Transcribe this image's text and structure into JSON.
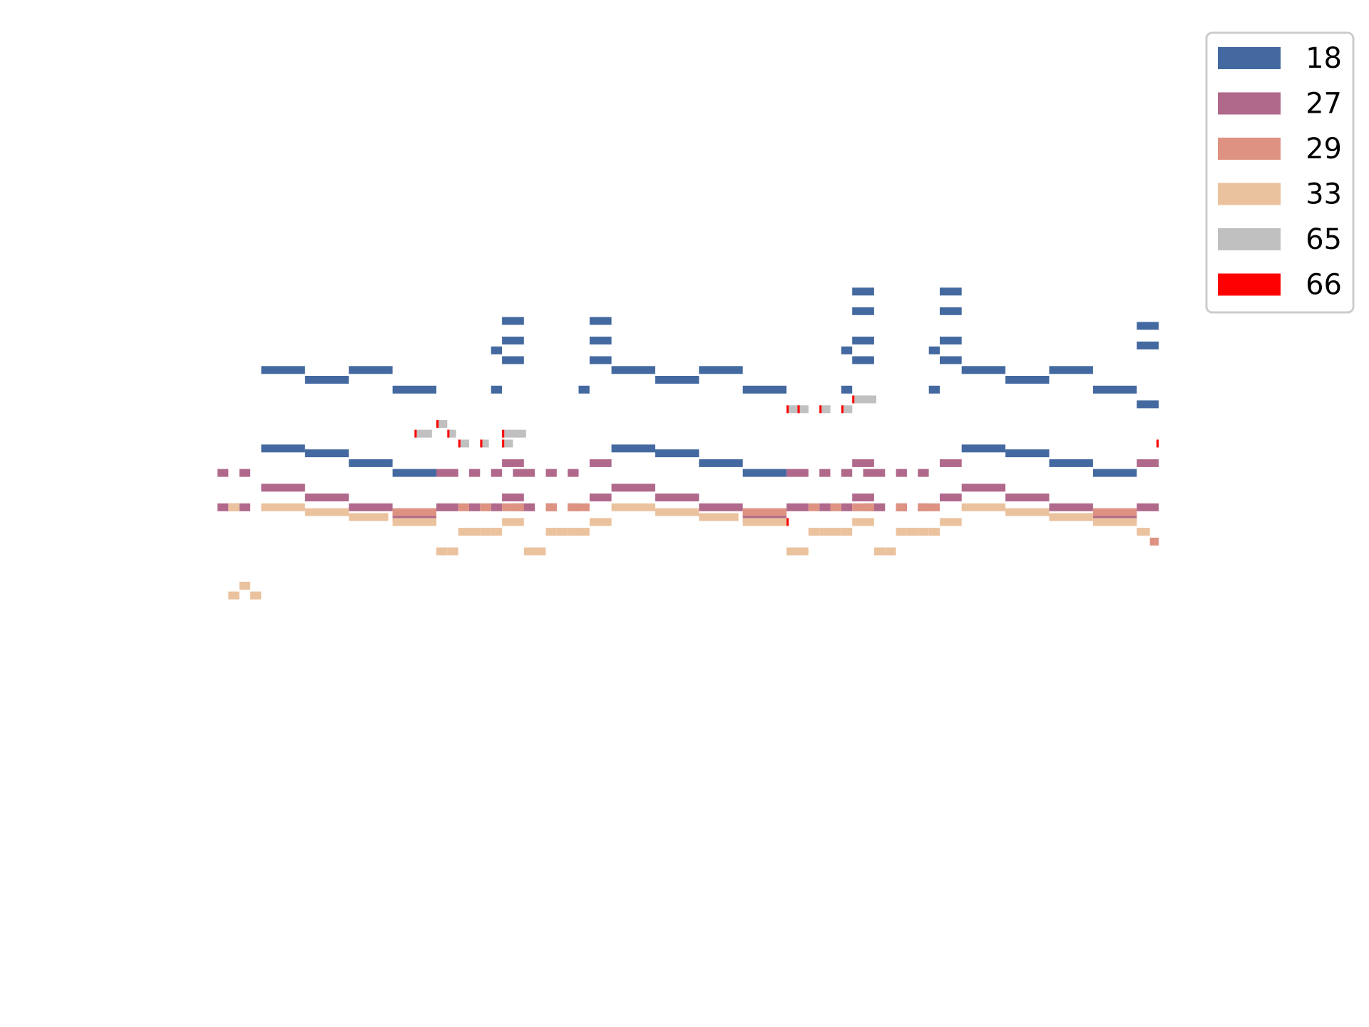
{
  "chart_data": {
    "type": "piano-roll",
    "title": "",
    "xlabel": "",
    "ylabel": "",
    "axes_visible": false,
    "grid": false,
    "xlim": [
      0,
      43
    ],
    "ylim": [
      20,
      100
    ],
    "legend": {
      "placement": "top-right"
    },
    "series": [
      {
        "name": "18",
        "color": "#4469a0",
        "notes": [
          [
            2,
            4,
            75
          ],
          [
            4,
            6,
            74
          ],
          [
            6,
            8,
            75
          ],
          [
            8,
            10,
            73
          ],
          [
            12.5,
            13,
            77
          ],
          [
            13,
            14,
            78
          ],
          [
            13,
            14,
            80
          ],
          [
            13,
            14,
            76
          ],
          [
            12.5,
            13,
            73
          ],
          [
            17,
            18,
            78
          ],
          [
            17,
            18,
            80
          ],
          [
            17,
            18,
            76
          ],
          [
            16.5,
            17,
            73
          ],
          [
            18,
            20,
            75
          ],
          [
            20,
            22,
            74
          ],
          [
            22,
            24,
            75
          ],
          [
            24,
            26,
            73
          ],
          [
            28.5,
            29,
            77
          ],
          [
            29,
            30,
            78
          ],
          [
            29,
            30,
            81
          ],
          [
            29,
            30,
            83
          ],
          [
            29,
            30,
            76
          ],
          [
            28.5,
            29,
            73
          ],
          [
            32.5,
            33,
            77
          ],
          [
            33,
            34,
            78
          ],
          [
            33,
            34,
            81
          ],
          [
            33,
            34,
            83
          ],
          [
            33,
            34,
            76
          ],
          [
            32.5,
            33,
            73
          ],
          [
            34,
            36,
            75
          ],
          [
            36,
            38,
            74
          ],
          [
            38,
            40,
            75
          ],
          [
            40,
            42,
            73
          ],
          [
            42,
            43,
            79.5
          ],
          [
            42,
            43,
            77.5
          ],
          [
            42,
            43,
            71.5
          ],
          [
            2,
            4,
            67
          ],
          [
            4,
            6,
            66.5
          ],
          [
            6,
            8,
            65.5
          ],
          [
            8,
            10,
            64.5
          ],
          [
            18,
            20,
            67
          ],
          [
            20,
            22,
            66.5
          ],
          [
            22,
            24,
            65.5
          ],
          [
            24,
            26,
            64.5
          ],
          [
            34,
            36,
            67
          ],
          [
            36,
            38,
            66.5
          ],
          [
            38,
            40,
            65.5
          ],
          [
            40,
            42,
            64.5
          ]
        ]
      },
      {
        "name": "27",
        "color": "#b0688b",
        "notes": [
          [
            0,
            0.5,
            64.5
          ],
          [
            1,
            1.5,
            64.5
          ],
          [
            0,
            0.5,
            61
          ],
          [
            1,
            1.5,
            61
          ],
          [
            2,
            4,
            63
          ],
          [
            4,
            6,
            62
          ],
          [
            6,
            8,
            61
          ],
          [
            8,
            10,
            60
          ],
          [
            10,
            11,
            64.5
          ],
          [
            11.5,
            12,
            64.5
          ],
          [
            12.5,
            13,
            64.5
          ],
          [
            13.5,
            14.5,
            64.5
          ],
          [
            15,
            15.5,
            64.5
          ],
          [
            16,
            16.5,
            64.5
          ],
          [
            13,
            14,
            65.5
          ],
          [
            13,
            14,
            62
          ],
          [
            17,
            18,
            65.5
          ],
          [
            17,
            18,
            62
          ],
          [
            10,
            11,
            61
          ],
          [
            11.5,
            12,
            61
          ],
          [
            12.5,
            13,
            61
          ],
          [
            13.5,
            14.5,
            61
          ],
          [
            15,
            15.5,
            61
          ],
          [
            16,
            16.5,
            61
          ],
          [
            18,
            20,
            63
          ],
          [
            20,
            22,
            62
          ],
          [
            22,
            24,
            61
          ],
          [
            24,
            26,
            60
          ],
          [
            26,
            27,
            64.5
          ],
          [
            27.5,
            28,
            64.5
          ],
          [
            28.5,
            29,
            64.5
          ],
          [
            29.5,
            30.5,
            64.5
          ],
          [
            31,
            31.5,
            64.5
          ],
          [
            32,
            32.5,
            64.5
          ],
          [
            29,
            30,
            65.5
          ],
          [
            29,
            30,
            62
          ],
          [
            33,
            34,
            65.5
          ],
          [
            33,
            34,
            62
          ],
          [
            26,
            27,
            61
          ],
          [
            27.5,
            28,
            61
          ],
          [
            28.5,
            29,
            61
          ],
          [
            29.5,
            30.5,
            61
          ],
          [
            31,
            31.5,
            61
          ],
          [
            32,
            32.5,
            61
          ],
          [
            34,
            36,
            63
          ],
          [
            36,
            38,
            62
          ],
          [
            38,
            40,
            61
          ],
          [
            40,
            42,
            60
          ],
          [
            42,
            43,
            65.5
          ],
          [
            42,
            43,
            61
          ]
        ]
      },
      {
        "name": "29",
        "color": "#de9282",
        "notes": [
          [
            0.5,
            1,
            61
          ],
          [
            8,
            10,
            60.5
          ],
          [
            11,
            11.5,
            61
          ],
          [
            12,
            12.5,
            61
          ],
          [
            13,
            14,
            61
          ],
          [
            15,
            15.5,
            61
          ],
          [
            16,
            17,
            61
          ],
          [
            24,
            26,
            60.5
          ],
          [
            27,
            27.5,
            61
          ],
          [
            28,
            28.5,
            61
          ],
          [
            29,
            30,
            61
          ],
          [
            31,
            31.5,
            61
          ],
          [
            32,
            33,
            61
          ],
          [
            40,
            42,
            60.5
          ],
          [
            42.6,
            43,
            57.5
          ]
        ]
      },
      {
        "name": "33",
        "color": "#ebc29e",
        "notes": [
          [
            0.5,
            1,
            61
          ],
          [
            2,
            4,
            61
          ],
          [
            4,
            6,
            60.5
          ],
          [
            6,
            7.8,
            60
          ],
          [
            8,
            10,
            59.5
          ],
          [
            13,
            14,
            59.5
          ],
          [
            17,
            18,
            59.5
          ],
          [
            11,
            11.5,
            58.5
          ],
          [
            11.5,
            12,
            58.5
          ],
          [
            12,
            12.5,
            58.5
          ],
          [
            12.5,
            13,
            58.5
          ],
          [
            10,
            10.5,
            56.5
          ],
          [
            10.5,
            11,
            56.5
          ],
          [
            15,
            15.5,
            58.5
          ],
          [
            15.5,
            16,
            58.5
          ],
          [
            16,
            16.5,
            58.5
          ],
          [
            16.5,
            17,
            58.5
          ],
          [
            14,
            14.5,
            56.5
          ],
          [
            14.5,
            15,
            56.5
          ],
          [
            18,
            20,
            61
          ],
          [
            20,
            22,
            60.5
          ],
          [
            22,
            23.8,
            60
          ],
          [
            24,
            26,
            59.5
          ],
          [
            29,
            30,
            59.5
          ],
          [
            33,
            34,
            59.5
          ],
          [
            27,
            27.5,
            58.5
          ],
          [
            27.5,
            28,
            58.5
          ],
          [
            28,
            28.5,
            58.5
          ],
          [
            28.5,
            29,
            58.5
          ],
          [
            26,
            26.5,
            56.5
          ],
          [
            26.5,
            27,
            56.5
          ],
          [
            31,
            31.5,
            58.5
          ],
          [
            31.5,
            32,
            58.5
          ],
          [
            32,
            32.5,
            58.5
          ],
          [
            32.5,
            33,
            58.5
          ],
          [
            30,
            30.5,
            56.5
          ],
          [
            30.5,
            31,
            56.5
          ],
          [
            34,
            36,
            61
          ],
          [
            36,
            38,
            60.5
          ],
          [
            38,
            40,
            60
          ],
          [
            40,
            42,
            59.5
          ],
          [
            42,
            42.6,
            58.5
          ],
          [
            1,
            1.5,
            53
          ],
          [
            0.5,
            1,
            52
          ],
          [
            1.5,
            2,
            52
          ]
        ]
      },
      {
        "name": "65",
        "color": "#c0c0c0",
        "notes": [
          [
            10.1,
            10.5,
            69.5
          ],
          [
            9.1,
            9.8,
            68.5
          ],
          [
            10.6,
            10.9,
            68.5
          ],
          [
            13.1,
            14.1,
            68.5
          ],
          [
            11.1,
            11.5,
            67.5
          ],
          [
            12.1,
            12.4,
            67.5
          ],
          [
            13.1,
            13.5,
            67.5
          ],
          [
            29.1,
            30.1,
            72
          ],
          [
            26.1,
            26.5,
            71
          ],
          [
            26.6,
            27,
            71
          ],
          [
            27.6,
            28,
            71
          ],
          [
            28.6,
            29,
            71
          ]
        ]
      },
      {
        "name": "66",
        "color": "#ff0000",
        "notes": [
          [
            10,
            10.1,
            69.5
          ],
          [
            9,
            9.1,
            68.5
          ],
          [
            10.5,
            10.6,
            68.5
          ],
          [
            13,
            13.1,
            68.5
          ],
          [
            11,
            11.1,
            67.5
          ],
          [
            12,
            12.1,
            67.5
          ],
          [
            13,
            13.1,
            67.5
          ],
          [
            29,
            29.1,
            72
          ],
          [
            26,
            26.1,
            71
          ],
          [
            26.5,
            26.6,
            71
          ],
          [
            27.5,
            27.6,
            71
          ],
          [
            28.5,
            28.6,
            71
          ],
          [
            42.9,
            43,
            67.5
          ],
          [
            26,
            26.1,
            59.5
          ]
        ]
      }
    ]
  }
}
